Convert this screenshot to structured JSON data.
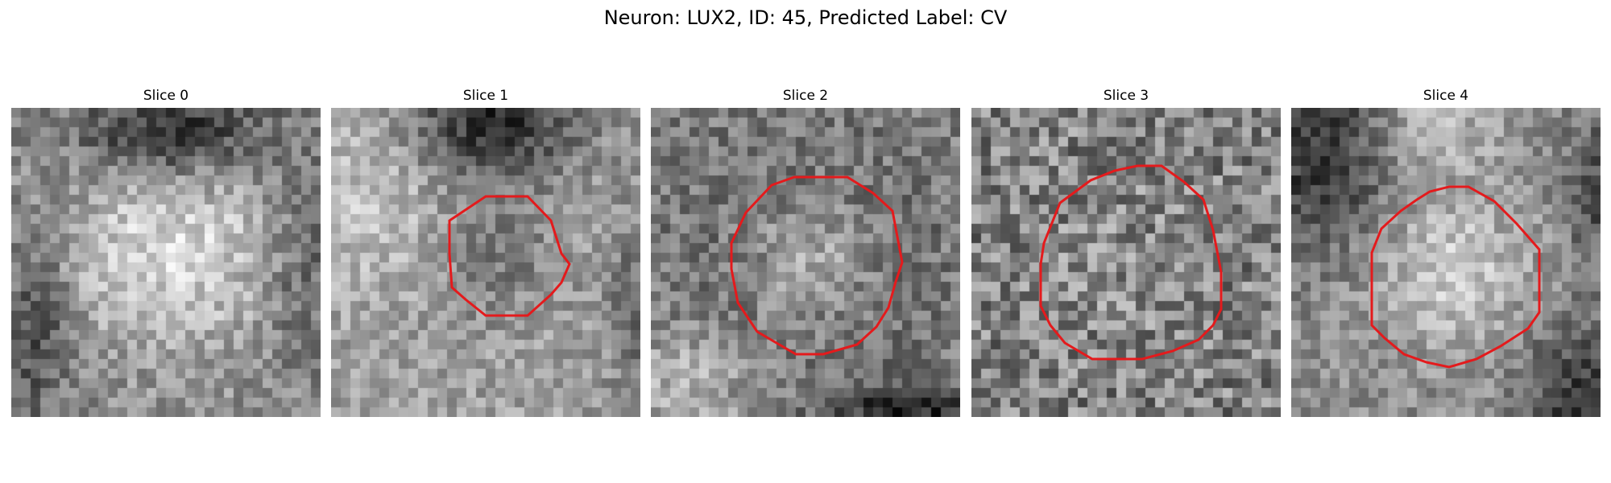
{
  "figure": {
    "title": "Neuron: LUX2, ID: 45, Predicted Label: CV"
  },
  "panels": [
    {
      "title": "Slice 0",
      "has_contour": false,
      "contour_color": "#e41a1c",
      "texture": "dark-top-bright-center"
    },
    {
      "title": "Slice 1",
      "has_contour": true,
      "contour_color": "#e41a1c",
      "texture": "dark-top-bright-sides"
    },
    {
      "title": "Slice 2",
      "has_contour": true,
      "contour_color": "#e41a1c",
      "texture": "bright-center-dark-ring"
    },
    {
      "title": "Slice 3",
      "has_contour": true,
      "contour_color": "#e41a1c",
      "texture": "noisy-mid"
    },
    {
      "title": "Slice 4",
      "has_contour": true,
      "contour_color": "#e41a1c",
      "texture": "dark-corners-bright-center"
    }
  ]
}
